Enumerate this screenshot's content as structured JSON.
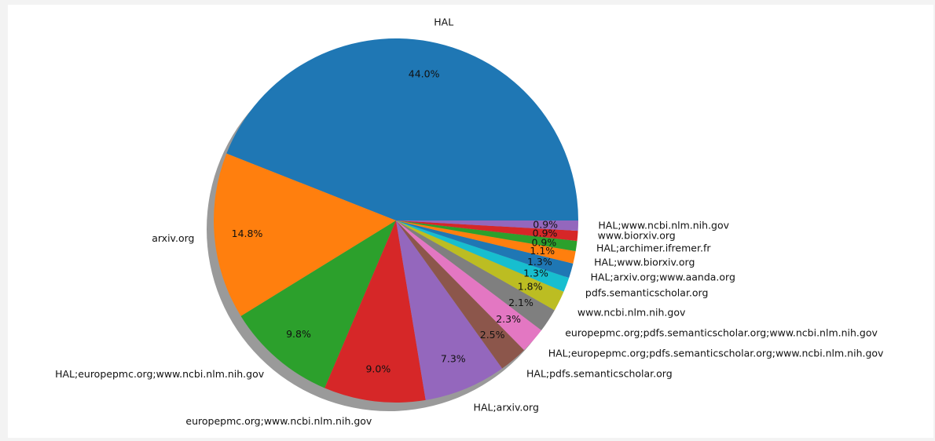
{
  "chart_data": {
    "type": "pie",
    "title": "",
    "shadow": true,
    "start_angle_deg": 0,
    "direction": "counterclockwise",
    "labels": [
      "HAL",
      "arxiv.org",
      "HAL;europepmc.org;www.ncbi.nlm.nih.gov",
      "europepmc.org;www.ncbi.nlm.nih.gov",
      "HAL;arxiv.org",
      "HAL;pdfs.semanticscholar.org",
      "HAL;europepmc.org;pdfs.semanticscholar.org;www.ncbi.nlm.nih.gov",
      "europepmc.org;pdfs.semanticscholar.org;www.ncbi.nlm.nih.gov",
      "www.ncbi.nlm.nih.gov",
      "pdfs.semanticscholar.org",
      "HAL;arxiv.org;www.aanda.org",
      "HAL;www.biorxiv.org",
      "HAL;archimer.ifremer.fr",
      "www.biorxiv.org",
      "HAL;www.ncbi.nlm.nih.gov"
    ],
    "values": [
      44.0,
      14.8,
      9.8,
      9.0,
      7.3,
      2.5,
      2.3,
      2.1,
      1.8,
      1.3,
      1.3,
      1.1,
      0.9,
      0.9,
      0.9
    ],
    "pct_labels": [
      "44.0%",
      "14.8%",
      "9.8%",
      "9.0%",
      "7.3%",
      "2.5%",
      "2.3%",
      "2.1%",
      "1.8%",
      "1.3%",
      "1.3%",
      "1.1%",
      "0.9%",
      "0.9%",
      "0.9%"
    ],
    "colors": [
      "#1f77b4",
      "#ff7f0e",
      "#2ca02c",
      "#d62728",
      "#9467bd",
      "#8c564b",
      "#e377c2",
      "#7f7f7f",
      "#bcbd22",
      "#17becf",
      "#1f77b4",
      "#ff7f0e",
      "#2ca02c",
      "#d62728",
      "#9467bd"
    ]
  }
}
